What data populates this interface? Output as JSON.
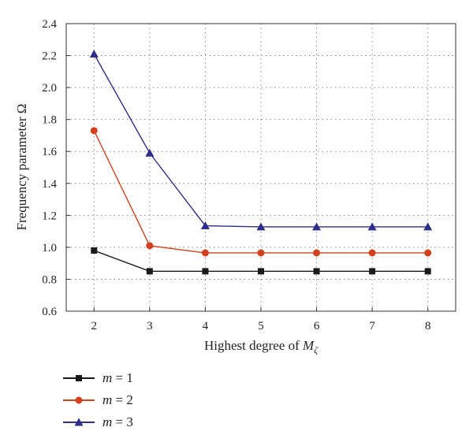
{
  "chart_data": {
    "type": "line",
    "title": "",
    "xlabel_prefix": "Highest degree of ",
    "xlabel_symbol": "M",
    "xlabel_subscript": "ζ",
    "ylabel": "Frequency parameter Ω",
    "x": [
      2,
      3,
      4,
      5,
      6,
      7,
      8
    ],
    "xlim": [
      1.5,
      8.5
    ],
    "ylim": [
      0.6,
      2.4
    ],
    "yticks": [
      "0.6",
      "0.8",
      "1.0",
      "1.2",
      "1.4",
      "1.6",
      "1.8",
      "2.0",
      "2.2",
      "2.4"
    ],
    "xticks": [
      "2",
      "3",
      "4",
      "5",
      "6",
      "7",
      "8"
    ],
    "grid": true,
    "legend_position": "bottom-left, below plot",
    "series": [
      {
        "name": "m = 1",
        "var": "m",
        "eq": " = 1",
        "color": "#1a1a1a",
        "marker": "square",
        "values": [
          0.98,
          0.85,
          0.85,
          0.85,
          0.85,
          0.85,
          0.85
        ]
      },
      {
        "name": "m = 2",
        "var": "m",
        "eq": " = 2",
        "color": "#d2411c",
        "marker": "circle",
        "values": [
          1.73,
          1.01,
          0.965,
          0.965,
          0.965,
          0.965,
          0.965
        ]
      },
      {
        "name": "m = 3",
        "var": "m",
        "eq": " = 3",
        "color": "#2e2d8c",
        "marker": "triangle",
        "values": [
          2.21,
          1.59,
          1.135,
          1.128,
          1.128,
          1.128,
          1.128
        ]
      }
    ]
  }
}
